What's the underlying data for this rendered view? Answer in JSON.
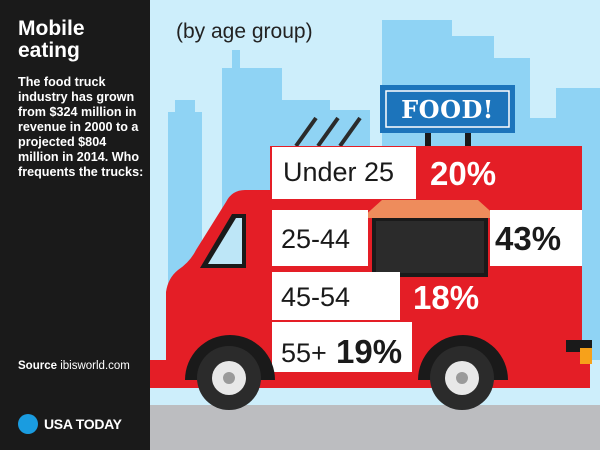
{
  "sidebar": {
    "title": "Mobile eating",
    "description": "The food truck industry has grown from $324 million in revenue in 2000 to a projected $804 million in 2014. Who frequents the trucks:",
    "source_label": "Source",
    "source_value": "ibisworld.com",
    "logo_text": "USA TODAY"
  },
  "sign": {
    "text": "FOOD!"
  },
  "colors": {
    "truck_red": "#e41e26",
    "sidebar_bg": "#1a1a1a",
    "sky": "#cdeefb",
    "buildings": "#8fd3f4",
    "sign_blue": "#1c74bb",
    "road": "#bcbdc0",
    "logo_blue": "#1a9ce0"
  },
  "chart_data": {
    "type": "bar",
    "subtitle": "(by age group)",
    "categories": [
      "Under 25",
      "25-44",
      "45-54",
      "55+"
    ],
    "values": [
      20,
      43,
      18,
      19
    ],
    "value_labels": [
      "20%",
      "43%",
      "18%",
      "19%"
    ],
    "unit": "%"
  }
}
